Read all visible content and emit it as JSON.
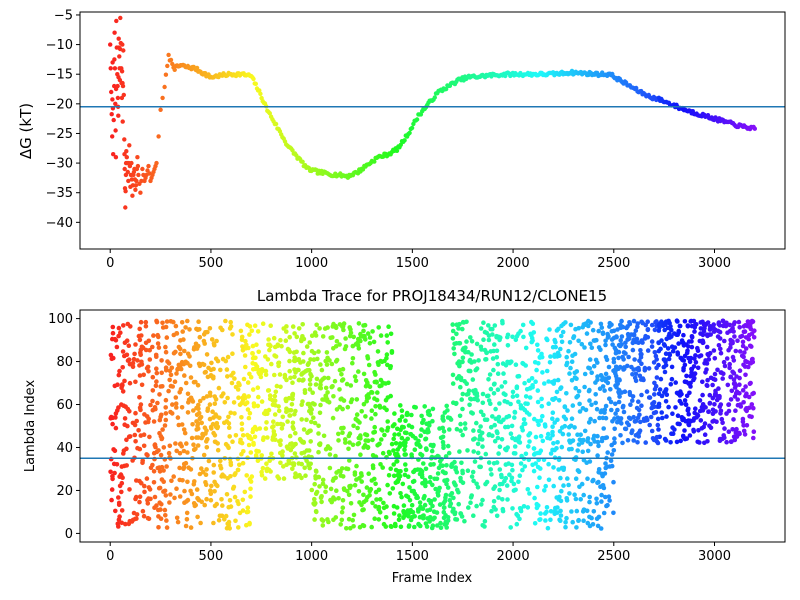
{
  "chart_data": [
    {
      "type": "scatter",
      "title": "",
      "xlabel": "",
      "ylabel": "ΔG (kT)",
      "xlim": [
        -150,
        3350
      ],
      "ylim": [
        -44.5,
        -4.5
      ],
      "xticks": [
        0,
        500,
        1000,
        1500,
        2000,
        2500,
        3000
      ],
      "yticks": [
        -40,
        -35,
        -30,
        -25,
        -20,
        -15,
        -10,
        -5
      ],
      "grid": false,
      "colormap": "rainbow (red at frame 0 → violet at frame 3200)",
      "hline": {
        "y": -20.5,
        "color": "#1f77b4"
      },
      "series_points": [
        [
          0,
          -10
        ],
        [
          5,
          -18
        ],
        [
          10,
          -25.5
        ],
        [
          12,
          -13
        ],
        [
          15,
          -28.5
        ],
        [
          20,
          -17
        ],
        [
          22,
          -8
        ],
        [
          25,
          -20
        ],
        [
          28,
          -29
        ],
        [
          30,
          -6
        ],
        [
          35,
          -15
        ],
        [
          38,
          -19
        ],
        [
          40,
          -22
        ],
        [
          42,
          -9
        ],
        [
          45,
          -12
        ],
        [
          48,
          -16
        ],
        [
          50,
          -5.5
        ],
        [
          55,
          -14
        ],
        [
          58,
          -19
        ],
        [
          60,
          -10
        ],
        [
          62,
          -23
        ],
        [
          65,
          -11
        ],
        [
          70,
          -26
        ],
        [
          72,
          -31
        ],
        [
          75,
          -37.5
        ],
        [
          78,
          -32
        ],
        [
          80,
          -28
        ],
        [
          85,
          -30
        ],
        [
          90,
          -33
        ],
        [
          95,
          -27
        ],
        [
          100,
          -34
        ],
        [
          105,
          -30
        ],
        [
          110,
          -35.5
        ],
        [
          115,
          -32
        ],
        [
          120,
          -31
        ],
        [
          125,
          -34.5
        ],
        [
          130,
          -33
        ],
        [
          135,
          -29
        ],
        [
          140,
          -32
        ],
        [
          150,
          -35
        ],
        [
          160,
          -31
        ],
        [
          170,
          -33
        ],
        [
          180,
          -32
        ],
        [
          190,
          -30.5
        ],
        [
          200,
          -33
        ],
        [
          210,
          -32
        ],
        [
          220,
          -31
        ],
        [
          230,
          -30
        ],
        [
          250,
          -21
        ],
        [
          270,
          -17
        ],
        [
          290,
          -12
        ],
        [
          320,
          -14
        ],
        [
          350,
          -13.5
        ],
        [
          380,
          -13.8
        ],
        [
          420,
          -14
        ],
        [
          460,
          -14.8
        ],
        [
          500,
          -15.5
        ],
        [
          550,
          -15.2
        ],
        [
          600,
          -15
        ],
        [
          650,
          -15
        ],
        [
          700,
          -15.3
        ],
        [
          740,
          -18
        ],
        [
          780,
          -21
        ],
        [
          830,
          -24
        ],
        [
          880,
          -27
        ],
        [
          930,
          -29
        ],
        [
          980,
          -31
        ],
        [
          1030,
          -31.5
        ],
        [
          1080,
          -31.8
        ],
        [
          1130,
          -32
        ],
        [
          1180,
          -32.2
        ],
        [
          1230,
          -31.5
        ],
        [
          1280,
          -30.2
        ],
        [
          1330,
          -29
        ],
        [
          1380,
          -28.5
        ],
        [
          1430,
          -27.5
        ],
        [
          1480,
          -25
        ],
        [
          1530,
          -22
        ],
        [
          1580,
          -20
        ],
        [
          1630,
          -18
        ],
        [
          1680,
          -17
        ],
        [
          1730,
          -16
        ],
        [
          1780,
          -15.5
        ],
        [
          1830,
          -15.4
        ],
        [
          1880,
          -15.2
        ],
        [
          1930,
          -15.1
        ],
        [
          1980,
          -15
        ],
        [
          2030,
          -15
        ],
        [
          2080,
          -15
        ],
        [
          2130,
          -15
        ],
        [
          2180,
          -15
        ],
        [
          2230,
          -14.9
        ],
        [
          2280,
          -14.7
        ],
        [
          2330,
          -14.8
        ],
        [
          2380,
          -14.9
        ],
        [
          2430,
          -15
        ],
        [
          2480,
          -15
        ],
        [
          2530,
          -16
        ],
        [
          2580,
          -17
        ],
        [
          2630,
          -18
        ],
        [
          2680,
          -18.8
        ],
        [
          2730,
          -19.3
        ],
        [
          2780,
          -20
        ],
        [
          2830,
          -20.7
        ],
        [
          2880,
          -21.3
        ],
        [
          2930,
          -21.8
        ],
        [
          2980,
          -22.3
        ],
        [
          3030,
          -22.8
        ],
        [
          3080,
          -23.3
        ],
        [
          3130,
          -23.8
        ],
        [
          3170,
          -24
        ],
        [
          3200,
          -24.2
        ]
      ]
    },
    {
      "type": "scatter",
      "title": "Lambda Trace for PROJ18434/RUN12/CLONE15",
      "xlabel": "Frame Index",
      "ylabel": "Lambda Index",
      "xlim": [
        -150,
        3350
      ],
      "ylim": [
        -4,
        104
      ],
      "xticks": [
        0,
        500,
        1000,
        1500,
        2000,
        2500,
        3000
      ],
      "yticks": [
        0,
        20,
        40,
        60,
        80,
        100
      ],
      "grid": false,
      "colormap": "rainbow (red at frame 0 → violet at frame 3200)",
      "hline": {
        "y": 35,
        "color": "#1f77b4"
      },
      "density_regions": [
        {
          "x": [
            0,
            100
          ],
          "y": [
            2,
            98
          ]
        },
        {
          "x": [
            100,
            300
          ],
          "y": [
            2,
            99
          ]
        },
        {
          "x": [
            300,
            700
          ],
          "y": [
            2,
            99
          ]
        },
        {
          "x": [
            700,
            1000
          ],
          "y": [
            25,
            98
          ]
        },
        {
          "x": [
            1000,
            1400
          ],
          "y": [
            2,
            98
          ]
        },
        {
          "x": [
            1400,
            1700
          ],
          "y": [
            2,
            60
          ]
        },
        {
          "x": [
            1700,
            2000
          ],
          "y": [
            2,
            99
          ]
        },
        {
          "x": [
            2000,
            2500
          ],
          "y": [
            2,
            99
          ]
        },
        {
          "x": [
            2500,
            3200
          ],
          "y": [
            42,
            99
          ]
        }
      ]
    }
  ]
}
